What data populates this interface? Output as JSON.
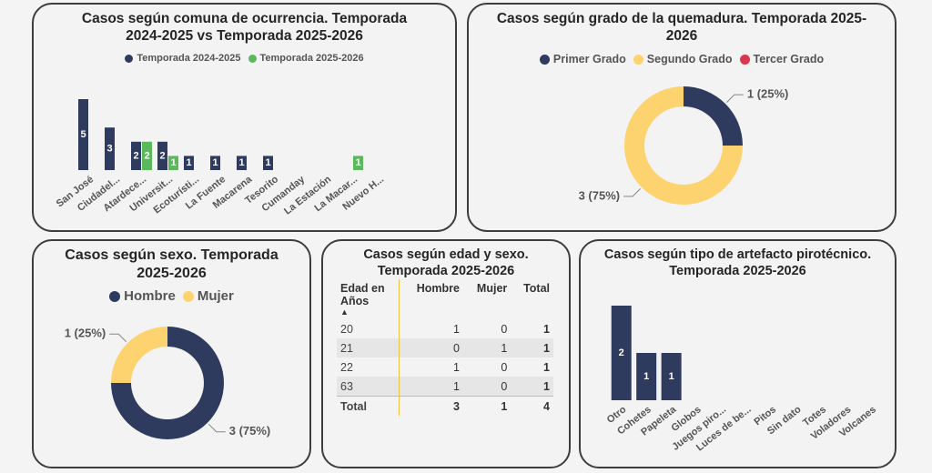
{
  "chart_data": [
    {
      "type": "bar",
      "title": "Casos según comuna de ocurrencia. Temporada 2024-2025 vs Temporada 2025-2026",
      "categories": [
        "San José",
        "Ciudadel...",
        "Atardece...",
        "Universit...",
        "Ecoturísti...",
        "La Fuente",
        "Macarena",
        "Tesorito",
        "Cumanday",
        "La Estación",
        "La Macar...",
        "Nuevo H..."
      ],
      "series": [
        {
          "name": "Temporada 2024-2025",
          "color": "#2e3b5e",
          "values": [
            5,
            3,
            2,
            2,
            1,
            1,
            1,
            1,
            null,
            null,
            null,
            null
          ]
        },
        {
          "name": "Temporada 2025-2026",
          "color": "#5cb85c",
          "values": [
            null,
            null,
            2,
            1,
            null,
            null,
            null,
            null,
            null,
            null,
            1,
            null
          ]
        }
      ]
    },
    {
      "type": "donut",
      "title": "Casos según grado de la quemadura. Temporada 2025-2026",
      "categories": [
        "Primer Grado",
        "Segundo Grado",
        "Tercer Grado"
      ],
      "values": [
        1,
        3,
        null
      ],
      "value_labels": [
        "1 (25%)",
        "3 (75%)",
        null
      ],
      "colors": [
        "#2e3b5e",
        "#fdd36f",
        "#d8384e"
      ]
    },
    {
      "type": "donut",
      "title": "Casos según sexo. Temporada 2025-2026",
      "categories": [
        "Hombre",
        "Mujer"
      ],
      "values": [
        3,
        1
      ],
      "value_labels": [
        "3 (75%)",
        "1 (25%)"
      ],
      "colors": [
        "#2e3b5e",
        "#fdd36f"
      ]
    },
    {
      "type": "bar",
      "title": "Casos según tipo de artefacto pirotécnico. Temporada 2025-2026",
      "categories": [
        "Otro",
        "Cohetes",
        "Papeleta",
        "Globos",
        "Juegos piro...",
        "Luces de be...",
        "Pitos",
        "Sin dato",
        "Totes",
        "Voladores",
        "Volcanes"
      ],
      "values": [
        2,
        1,
        1,
        null,
        null,
        null,
        null,
        null,
        null,
        null,
        null
      ],
      "color": "#2e3b5e"
    }
  ],
  "table": {
    "title": "Casos según edad y sexo. Temporada 2025-2026",
    "columns": [
      "Edad en Años",
      "Hombre",
      "Mujer",
      "Total"
    ],
    "rows": [
      [
        "20",
        1,
        0,
        1
      ],
      [
        "21",
        0,
        1,
        1
      ],
      [
        "22",
        1,
        0,
        1
      ],
      [
        "63",
        1,
        0,
        1
      ]
    ],
    "total": [
      "Total",
      3,
      1,
      4
    ]
  }
}
